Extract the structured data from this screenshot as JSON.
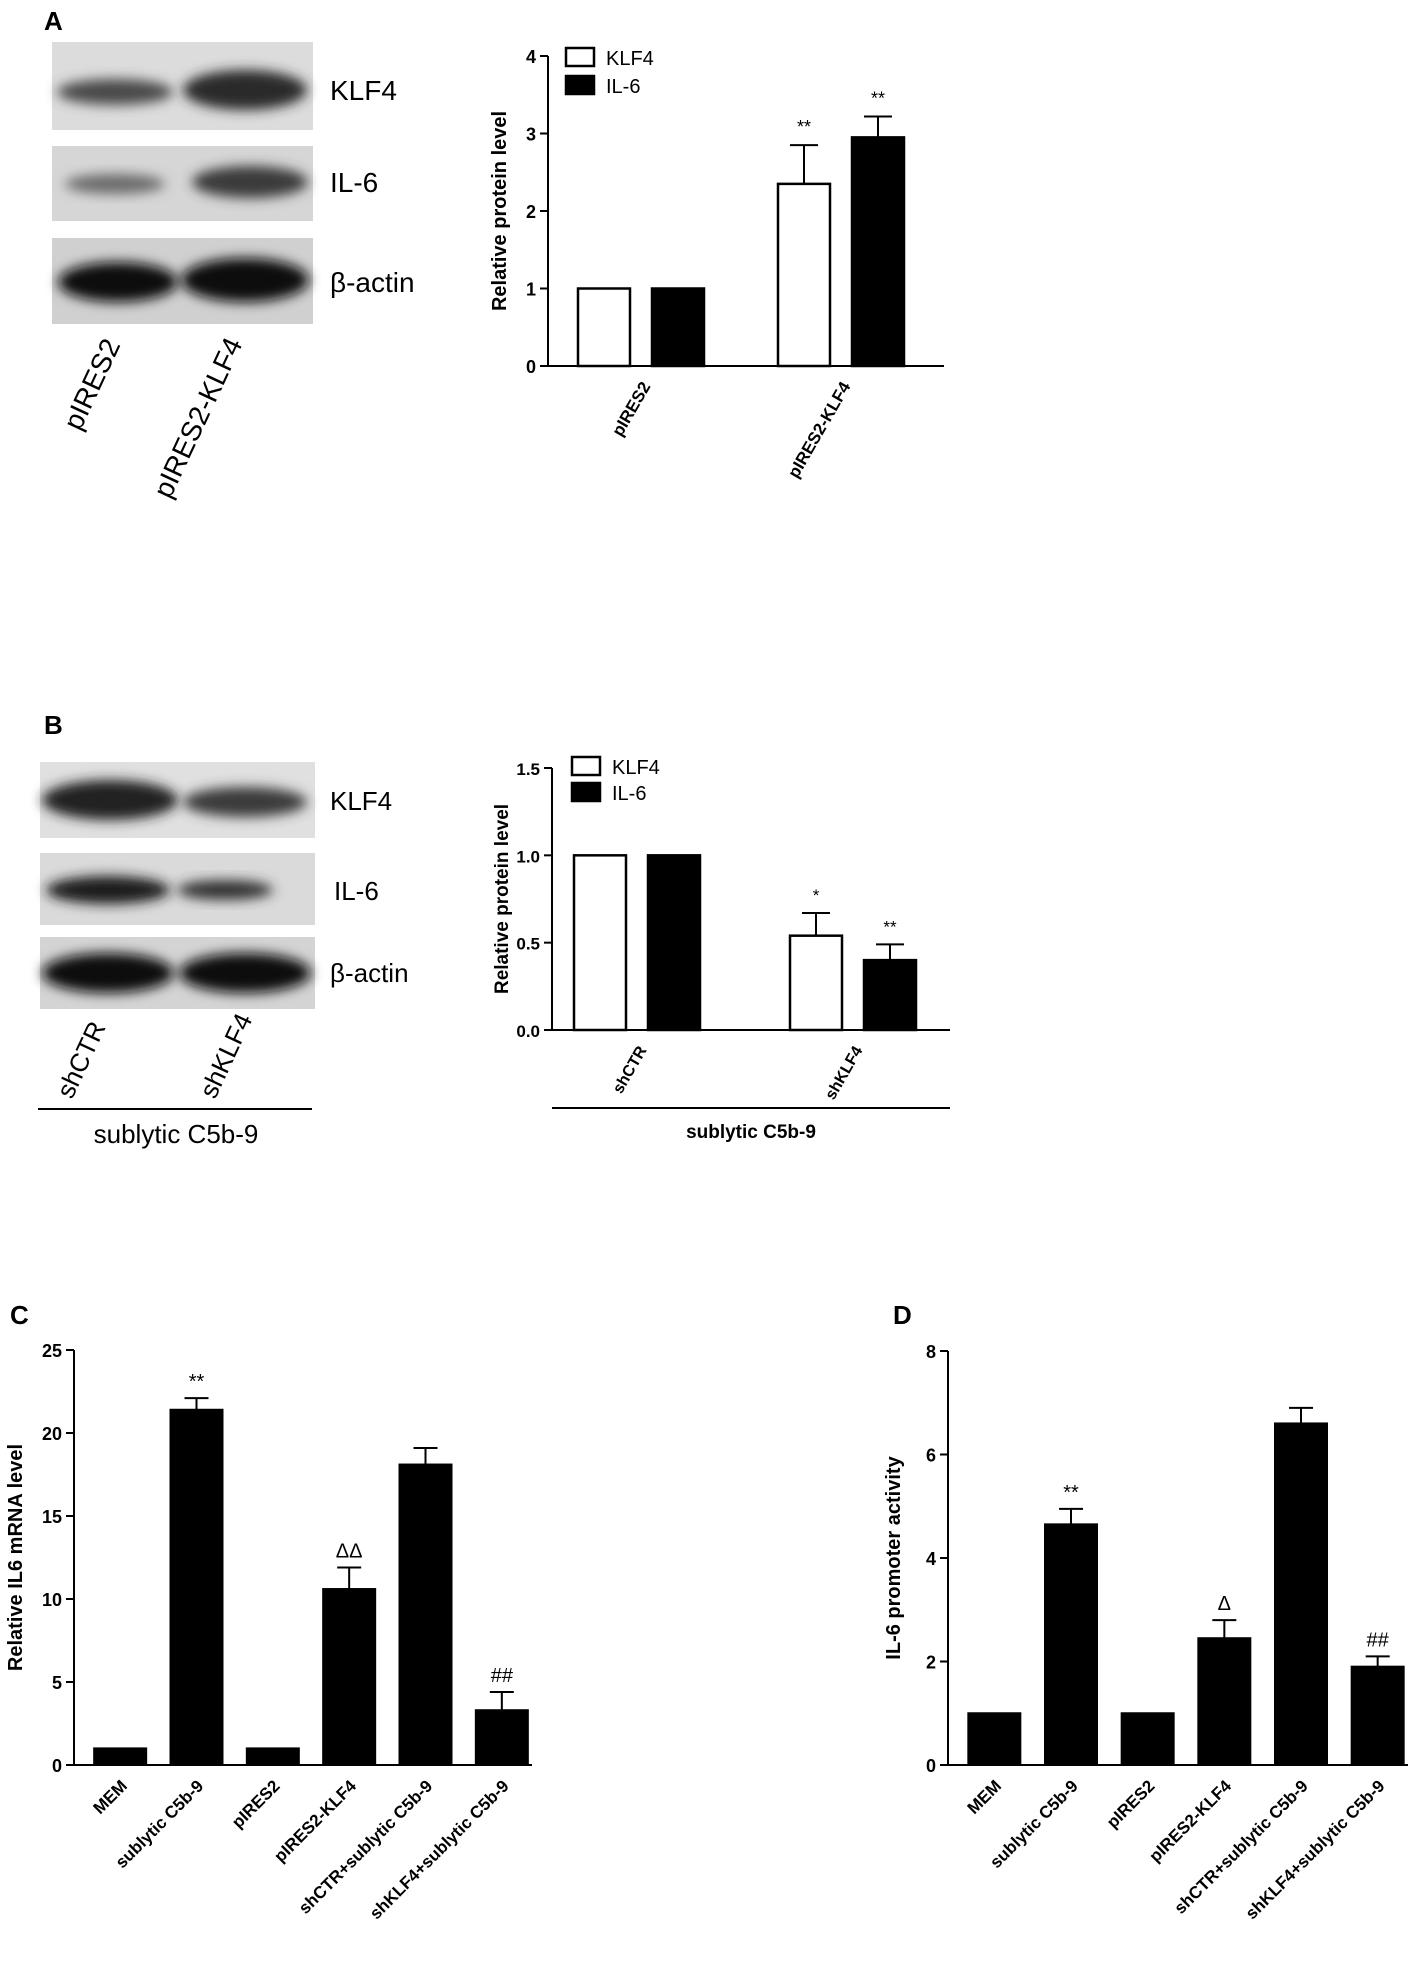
{
  "panels": {
    "A": {
      "letter": "A",
      "blot": {
        "bands": [
          "KLF4",
          "IL-6",
          "β-actin"
        ],
        "lanes": [
          "pIRES2",
          "pIRES2-KLF4"
        ]
      },
      "chart_data": {
        "type": "bar",
        "categories": [
          "pIRES2",
          "pIRES2-KLF4"
        ],
        "series": [
          {
            "name": "KLF4",
            "values": [
              1.0,
              2.35
            ],
            "errors": [
              0,
              0.5
            ],
            "fill": "#ffffff",
            "annotations": [
              "",
              "**"
            ]
          },
          {
            "name": "IL-6",
            "values": [
              1.0,
              2.95
            ],
            "errors": [
              0,
              0.27
            ],
            "fill": "#000000",
            "annotations": [
              "",
              "**"
            ]
          }
        ],
        "ylabel": "Relative protein level",
        "ylim": [
          0,
          4
        ],
        "yticks": [
          "0",
          "1",
          "2",
          "3",
          "4"
        ],
        "legend": "top-left"
      }
    },
    "B": {
      "letter": "B",
      "blot": {
        "bands": [
          "KLF4",
          "IL-6",
          "β-actin"
        ],
        "lanes": [
          "shCTR",
          "shKLF4"
        ],
        "group_label": "sublytic C5b-9"
      },
      "chart_data": {
        "type": "bar",
        "categories": [
          "shCTR",
          "shKLF4"
        ],
        "series": [
          {
            "name": "KLF4",
            "values": [
              1.0,
              0.54
            ],
            "errors": [
              0,
              0.13
            ],
            "fill": "#ffffff",
            "annotations": [
              "",
              "*"
            ]
          },
          {
            "name": "IL-6",
            "values": [
              1.0,
              0.4
            ],
            "errors": [
              0,
              0.09
            ],
            "fill": "#000000",
            "annotations": [
              "",
              "**"
            ]
          }
        ],
        "ylabel": "Relative protein level",
        "ylim": [
          0,
          1.5
        ],
        "yticks": [
          "0.0",
          "0.5",
          "1.0",
          "1.5"
        ],
        "group_label": "sublytic C5b-9",
        "legend": "top-left"
      }
    },
    "C": {
      "letter": "C",
      "chart_data": {
        "type": "bar",
        "categories": [
          "MEM",
          "sublytic C5b-9",
          "pIRES2",
          "pIRES2-KLF4",
          "shCTR+sublytic C5b-9",
          "shKLF4+sublytic C5b-9"
        ],
        "values": [
          1.0,
          21.4,
          1.0,
          10.6,
          18.1,
          3.3
        ],
        "errors": [
          0,
          0.7,
          0,
          1.3,
          1.0,
          1.1
        ],
        "annotations": [
          "",
          "**",
          "",
          "ΔΔ",
          "",
          "##"
        ],
        "ylabel": "Relative IL6 mRNA level",
        "ylim": [
          0,
          25
        ],
        "yticks": [
          "0",
          "5",
          "10",
          "15",
          "20",
          "25"
        ]
      }
    },
    "D": {
      "letter": "D",
      "chart_data": {
        "type": "bar",
        "categories": [
          "MEM",
          "sublytic C5b-9",
          "pIRES2",
          "pIRES2-KLF4",
          "shCTR+sublytic C5b-9",
          "shKLF4+sublytic C5b-9"
        ],
        "values": [
          1.0,
          4.65,
          1.0,
          2.45,
          6.6,
          1.9
        ],
        "errors": [
          0,
          0.3,
          0,
          0.35,
          0.3,
          0.2
        ],
        "annotations": [
          "",
          "**",
          "",
          "Δ",
          "",
          "##"
        ],
        "ylabel": "IL-6 promoter activity",
        "ylim": [
          0,
          8
        ],
        "yticks": [
          "0",
          "2",
          "4",
          "6",
          "8"
        ]
      }
    }
  }
}
